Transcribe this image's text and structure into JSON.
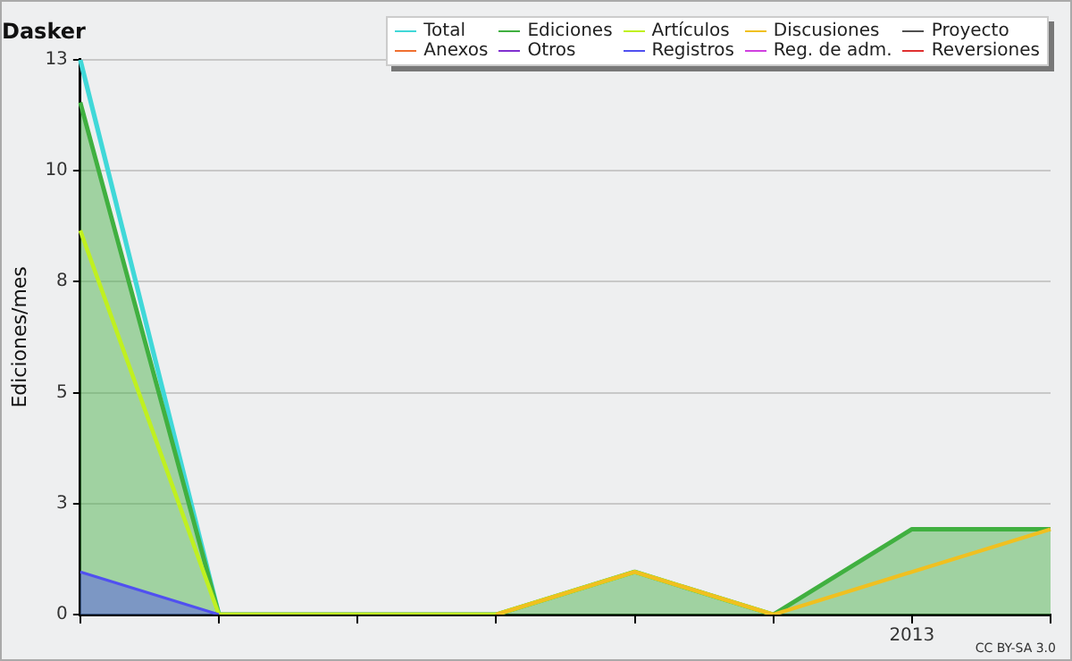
{
  "chart_data": {
    "type": "line",
    "title": "Dasker",
    "ylabel": "Ediciones/mes",
    "categories": [
      null,
      null,
      null,
      null,
      null,
      null,
      "2013",
      null
    ],
    "ylim": [
      0,
      13
    ],
    "yticks": [
      0,
      {
        "value": 2.6,
        "label": "3"
      },
      {
        "value": 5.2,
        "label": "5"
      },
      {
        "value": 7.8,
        "label": "8"
      },
      {
        "value": 10.4,
        "label": "10"
      },
      13
    ],
    "grid": "y",
    "legend": "top right",
    "marker": "none",
    "annotations": [
      "CC BY-SA 3.0"
    ],
    "series": [
      {
        "name": "Total",
        "color": "#40d8d8",
        "values": [
          13,
          0,
          null,
          null,
          null,
          null,
          null,
          null
        ]
      },
      {
        "name": "Ediciones",
        "type": "area",
        "color": "#40b040",
        "values": [
          12,
          0,
          0,
          0,
          1,
          0,
          2,
          2
        ]
      },
      {
        "name": "Artículos",
        "color": "#c0f020",
        "values": [
          9,
          0,
          0,
          0,
          1,
          0,
          null,
          null
        ]
      },
      {
        "name": "Discusiones",
        "color": "#f0c020",
        "values": [
          null,
          null,
          null,
          0,
          1,
          0,
          1,
          2
        ]
      },
      {
        "name": "Proyecto",
        "color": "#505050",
        "values": [
          null,
          null,
          null,
          null,
          null,
          null,
          null,
          null
        ]
      },
      {
        "name": "Anexos",
        "color": "#f07030",
        "values": [
          null,
          null,
          null,
          null,
          null,
          null,
          null,
          null
        ]
      },
      {
        "name": "Otros",
        "color": "#8030d0",
        "values": [
          null,
          null,
          null,
          null,
          null,
          null,
          null,
          null
        ]
      },
      {
        "name": "Registros",
        "type": "area",
        "color": "#5050f0",
        "values": [
          1,
          0,
          null,
          null,
          null,
          null,
          null,
          null
        ]
      },
      {
        "name": "Reg. de adm.",
        "color": "#d040e0",
        "values": [
          null,
          null,
          null,
          null,
          null,
          null,
          null,
          null
        ]
      },
      {
        "name": "Reversiones",
        "color": "#e03030",
        "values": [
          null,
          null,
          null,
          null,
          null,
          null,
          null,
          null
        ]
      }
    ]
  }
}
